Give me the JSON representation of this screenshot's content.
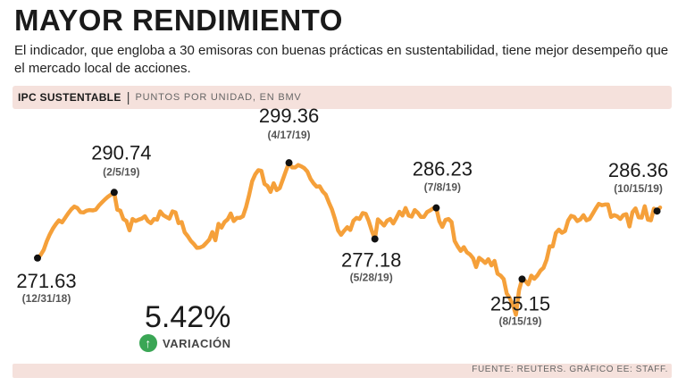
{
  "header": {
    "title": "MAYOR RENDIMIENTO",
    "subtitle": "El indicador, que engloba a 30 emisoras con buenas prácticas en sustentabilidad, tiene mejor desempeño que el mercado local de acciones."
  },
  "chart_header": {
    "indicator": "IPC SUSTENTABLE",
    "separator": "|",
    "units": "PUNTOS POR UNIDAD, EN BMV"
  },
  "summary": {
    "change": "5.42%",
    "change_label": "VARIACIÓN",
    "icon": "arrow-up-circle-icon",
    "icon_color": "#3aa655"
  },
  "footer": {
    "source": "FUENTE: REUTERS. GRÁFICO EE: STAFF."
  },
  "colors": {
    "line": "#f5a03a",
    "accent_bar": "#f5e1dc",
    "marker": "#111111"
  },
  "chart_data": {
    "type": "line",
    "x_label": "",
    "y_label": "",
    "ylim": [
      250,
      302
    ],
    "grid": false,
    "series": [
      {
        "name": "",
        "values": [
          271.63,
          272.5,
          274.0,
          276.5,
          278.5,
          280.2,
          281.5,
          282.6,
          282.0,
          283.3,
          284.6,
          285.8,
          286.6,
          286.2,
          285.0,
          284.9,
          285.4,
          285.6,
          285.5,
          285.7,
          286.9,
          287.8,
          288.7,
          289.5,
          290.1,
          290.74,
          285.7,
          285.4,
          283.0,
          282.4,
          279.7,
          283.0,
          282.4,
          282.8,
          283.1,
          283.8,
          282.4,
          281.8,
          283.0,
          282.8,
          285.2,
          284.1,
          283.6,
          283.1,
          285.2,
          284.9,
          281.8,
          282.1,
          279.1,
          278.0,
          276.6,
          275.7,
          274.6,
          274.7,
          275.1,
          276.0,
          277.0,
          279.2,
          276.8,
          281.6,
          280.5,
          282.1,
          282.9,
          284.6,
          282.4,
          283.3,
          283.3,
          283.8,
          286.5,
          290.0,
          294.0,
          296.0,
          297.2,
          297.0,
          293.2,
          292.6,
          290.9,
          293.4,
          291.4,
          292.0,
          294.5,
          297.0,
          299.36,
          298.0,
          298.0,
          298.7,
          298.3,
          297.8,
          296.8,
          294.7,
          293.4,
          292.4,
          292.5,
          291.0,
          290.1,
          287.8,
          285.8,
          283.0,
          279.7,
          278.4,
          279.6,
          280.6,
          279.8,
          282.5,
          283.3,
          283.0,
          284.7,
          284.5,
          282.4,
          279.5,
          277.18,
          282.9,
          282.0,
          281.1,
          282.5,
          283.0,
          281.7,
          283.3,
          285.1,
          284.0,
          286.2,
          284.0,
          283.7,
          285.6,
          284.8,
          283.6,
          283.6,
          285.0,
          285.5,
          286.1,
          286.23,
          282.4,
          280.7,
          282.7,
          283.0,
          282.1,
          276.6,
          275.0,
          273.7,
          274.8,
          273.3,
          272.7,
          271.6,
          269.0,
          271.7,
          271.0,
          270.2,
          271.3,
          269.5,
          270.8,
          267.1,
          266.5,
          265.5,
          261.3,
          259.9,
          258.0,
          255.15,
          262.3,
          265.5,
          265.0,
          264.0,
          266.5,
          265.6,
          266.6,
          268.0,
          268.8,
          271.2,
          275.0,
          275.0,
          278.9,
          279.9,
          279.0,
          279.5,
          282.5,
          283.9,
          283.6,
          282.4,
          282.9,
          284.1,
          282.6,
          283.0,
          284.5,
          286.0,
          287.4,
          287.0,
          287.2,
          287.2,
          283.6,
          284.1,
          283.8,
          283.0,
          284.1,
          284.4,
          280.8,
          285.0,
          286.1,
          283.5,
          283.4,
          286.7,
          282.8,
          282.6,
          286.0,
          285.3,
          286.36
        ]
      }
    ],
    "annotations": [
      {
        "index": 0,
        "value": "271.63",
        "date": "(12/31/18)"
      },
      {
        "index": 25,
        "value": "290.74",
        "date": "(2/5/19)"
      },
      {
        "index": 82,
        "value": "299.36",
        "date": "(4/17/19)"
      },
      {
        "index": 110,
        "value": "277.18",
        "date": "(5/28/19)"
      },
      {
        "index": 130,
        "value": "286.23",
        "date": "(7/8/19)"
      },
      {
        "index": 158,
        "value": "255.15",
        "date": "(8/15/19)"
      },
      {
        "index": 202,
        "value": "286.36",
        "date": "(10/15/19)"
      }
    ]
  }
}
